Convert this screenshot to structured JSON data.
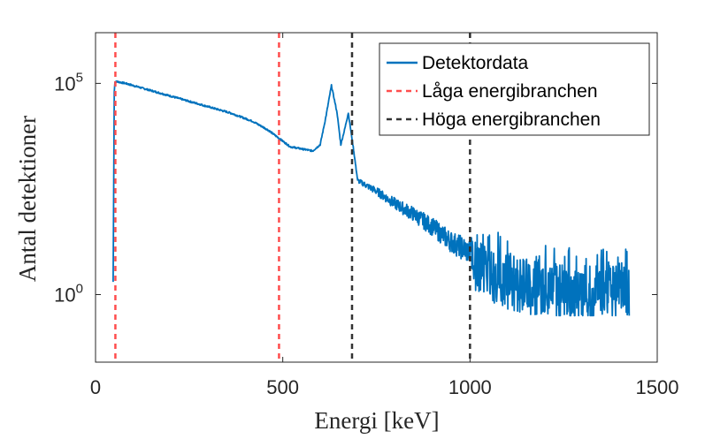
{
  "chart_data": {
    "type": "line",
    "yscale": "log",
    "xlabel": "Energi [keV]",
    "ylabel": "Antal detektioner",
    "xlim": [
      0,
      1500
    ],
    "ylim_log10": [
      -1.6,
      6.2
    ],
    "xticks": [
      {
        "value": 0,
        "label": "0"
      },
      {
        "value": 500,
        "label": "500"
      },
      {
        "value": 1000,
        "label": "1000"
      },
      {
        "value": 1500,
        "label": "1500"
      }
    ],
    "yticks": [
      {
        "log10": 0,
        "base": "10",
        "exp": "0"
      },
      {
        "log10": 5,
        "base": "10",
        "exp": "5"
      }
    ],
    "legend_position": "top-right",
    "series": [
      {
        "name": "Detektordata",
        "kind": "data",
        "color": "#0072bd",
        "points_log10": [
          [
            47,
            0.3
          ],
          [
            50,
            4.8
          ],
          [
            52,
            5.05
          ],
          [
            80,
            5.0
          ],
          [
            120,
            4.9
          ],
          [
            180,
            4.75
          ],
          [
            240,
            4.6
          ],
          [
            300,
            4.45
          ],
          [
            360,
            4.3
          ],
          [
            420,
            4.1
          ],
          [
            460,
            3.9
          ],
          [
            490,
            3.7
          ],
          [
            520,
            3.5
          ],
          [
            550,
            3.45
          ],
          [
            580,
            3.4
          ],
          [
            600,
            3.55
          ],
          [
            615,
            4.2
          ],
          [
            630,
            4.95
          ],
          [
            645,
            4.3
          ],
          [
            655,
            3.55
          ],
          [
            665,
            3.9
          ],
          [
            675,
            4.3
          ],
          [
            688,
            3.5
          ],
          [
            700,
            2.7
          ],
          [
            750,
            2.45
          ],
          [
            800,
            2.15
          ],
          [
            850,
            1.9
          ],
          [
            900,
            1.6
          ],
          [
            950,
            1.25
          ],
          [
            1000,
            1.0
          ],
          [
            1050,
            0.7
          ],
          [
            1100,
            0.5
          ],
          [
            1200,
            0.3
          ],
          [
            1300,
            0.2
          ],
          [
            1400,
            0.3
          ],
          [
            1425,
            0.3
          ]
        ]
      },
      {
        "name": "Låga energibranchen",
        "kind": "vlines",
        "color": "#ff4d4d",
        "x_values": [
          53,
          490
        ]
      },
      {
        "name": "Höga energibranchen",
        "kind": "vlines",
        "color": "#333333",
        "x_values": [
          685,
          1000
        ]
      }
    ]
  }
}
